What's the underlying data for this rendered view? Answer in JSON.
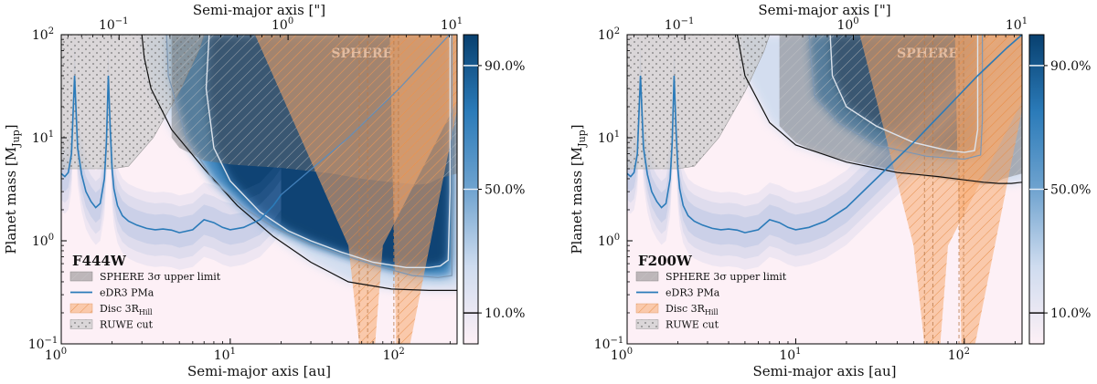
{
  "chart_data": [
    {
      "type": "area",
      "panel_label": "F444W",
      "xlabel": "Semi-major axis [au]",
      "ylabel": "Planet mass [M_Jup]",
      "ylabel_main": "Planet mass [M",
      "ylabel_sub": "Jup",
      "ylabel_close": "]",
      "top_xlabel": "Semi-major axis [\"]",
      "xscale": "log",
      "yscale": "log",
      "xlim": [
        1,
        220
      ],
      "ylim": [
        0.1,
        100
      ],
      "top_xlim": [
        0.0455,
        10
      ],
      "x_ticks": [
        {
          "v": 1,
          "b": "10",
          "e": "0"
        },
        {
          "v": 10,
          "b": "10",
          "e": "1"
        },
        {
          "v": 100,
          "b": "10",
          "e": "2"
        }
      ],
      "y_ticks": [
        {
          "v": 0.1,
          "b": "10",
          "e": "−1"
        },
        {
          "v": 1,
          "b": "10",
          "e": "0"
        },
        {
          "v": 10,
          "b": "10",
          "e": "1"
        },
        {
          "v": 100,
          "b": "10",
          "e": "2"
        }
      ],
      "top_ticks": [
        {
          "v": 0.1,
          "b": "10",
          "e": "−1"
        },
        {
          "v": 1,
          "b": "10",
          "e": "0"
        },
        {
          "v": 10,
          "b": "10",
          "e": "1"
        }
      ],
      "sphere_label": "SPHERE",
      "colorbar": {
        "ticks": [
          "90.0%",
          "50.0%",
          "10.0%"
        ],
        "values": [
          0.9,
          0.5,
          0.1
        ],
        "colors": [
          "#fdf0f6",
          "#cfdcef",
          "#6fa3cf",
          "#2b7bb9",
          "#08406f"
        ]
      },
      "legend": [
        {
          "label": "SPHERE 3σ upper limit",
          "style": "sphere"
        },
        {
          "label": "eDR3 PMa",
          "style": "pma"
        },
        {
          "label_main": "Disc 3R",
          "label_sub": "Hill",
          "style": "disc"
        },
        {
          "label": "RUWE cut",
          "style": "ruwe"
        }
      ],
      "pma_curve": {
        "x": [
          1,
          1.05,
          1.1,
          1.15,
          1.2,
          1.25,
          1.32,
          1.4,
          1.5,
          1.6,
          1.7,
          1.8,
          1.85,
          1.9,
          1.95,
          2.0,
          2.05,
          2.15,
          2.3,
          2.5,
          2.8,
          3.2,
          3.6,
          4.0,
          4.5,
          5.0,
          6.0,
          7.0,
          8.0,
          9.0,
          10,
          12,
          15,
          18,
          20
        ],
        "y": [
          4.5,
          4.2,
          4.6,
          7.0,
          40,
          8.0,
          4.4,
          3.0,
          2.4,
          2.1,
          2.3,
          4.0,
          9.0,
          40,
          12,
          5.0,
          3.2,
          2.2,
          1.75,
          1.55,
          1.42,
          1.32,
          1.28,
          1.3,
          1.27,
          1.2,
          1.28,
          1.6,
          1.5,
          1.35,
          1.28,
          1.35,
          1.6,
          2.2,
          2.8
        ]
      },
      "pma_line_extension": {
        "x": [
          20,
          50,
          100,
          220
        ],
        "y": [
          2.8,
          10,
          30,
          120
        ]
      },
      "contours": {
        "90": {
          "x": [
            7.5,
            7.2,
            8.0,
            10,
            15,
            22,
            30,
            45,
            70,
            110,
            150,
            175,
            195,
            200,
            200
          ],
          "y": [
            100,
            30,
            8,
            3.8,
            1.9,
            1.25,
            1.0,
            0.78,
            0.62,
            0.55,
            0.55,
            0.57,
            0.65,
            3,
            100
          ]
        },
        "50": {
          "x": [
            4.2,
            4.3,
            5.5,
            8,
            12,
            18,
            30,
            50,
            80,
            120,
            170,
            205,
            205
          ],
          "y": [
            100,
            40,
            10,
            3.8,
            2.1,
            1.35,
            0.92,
            0.7,
            0.55,
            0.46,
            0.44,
            0.46,
            100
          ]
        },
        "10": {
          "x": [
            3.0,
            3.1,
            3.4,
            4.5,
            7,
            11,
            18,
            30,
            50,
            90,
            150,
            220
          ],
          "y": [
            100,
            60,
            30,
            12,
            5.0,
            2.2,
            1.1,
            0.62,
            0.4,
            0.34,
            0.33,
            0.33
          ]
        }
      },
      "sphere_limit": {
        "x": [
          4.5,
          5,
          7,
          10,
          20,
          40,
          60,
          90,
          110,
          130,
          150,
          170,
          220
        ],
        "y": [
          10,
          8,
          6,
          5.5,
          5.1,
          4.5,
          4.0,
          3.7,
          3.6,
          3.5,
          3.6,
          4.0,
          4.5
        ]
      },
      "disc_regions": [
        {
          "x_low": [
            14,
            50,
            58
          ],
          "x_high": [
            350,
            80,
            72
          ],
          "y": [
            100,
            0.9,
            0.1
          ]
        },
        {
          "x_low": [
            88,
            96
          ],
          "x_high": [
            270,
            116
          ],
          "y": [
            100,
            0.1
          ]
        }
      ],
      "disc_lines": [
        58,
        65,
        93,
        99
      ]
    },
    {
      "type": "area",
      "panel_label": "F200W",
      "xlabel": "Semi-major axis [au]",
      "ylabel": "Planet mass [M_Jup]",
      "ylabel_main": "Planet mass [M",
      "ylabel_sub": "Jup",
      "ylabel_close": "]",
      "top_xlabel": "Semi-major axis [\"]",
      "xscale": "log",
      "yscale": "log",
      "xlim": [
        1,
        220
      ],
      "ylim": [
        0.1,
        100
      ],
      "top_xlim": [
        0.0455,
        10
      ],
      "x_ticks": [
        {
          "v": 1,
          "b": "10",
          "e": "0"
        },
        {
          "v": 10,
          "b": "10",
          "e": "1"
        },
        {
          "v": 100,
          "b": "10",
          "e": "2"
        }
      ],
      "y_ticks": [
        {
          "v": 0.1,
          "b": "10",
          "e": "−1"
        },
        {
          "v": 1,
          "b": "10",
          "e": "0"
        },
        {
          "v": 10,
          "b": "10",
          "e": "1"
        },
        {
          "v": 100,
          "b": "10",
          "e": "2"
        }
      ],
      "top_ticks": [
        {
          "v": 0.1,
          "b": "10",
          "e": "−1"
        },
        {
          "v": 1,
          "b": "10",
          "e": "0"
        },
        {
          "v": 10,
          "b": "10",
          "e": "1"
        }
      ],
      "sphere_label": "SPHERE",
      "colorbar": {
        "ticks": [
          "90.0%",
          "50.0%",
          "10.0%"
        ],
        "values": [
          0.9,
          0.5,
          0.1
        ],
        "colors": [
          "#fdf0f6",
          "#cfdcef",
          "#6fa3cf",
          "#2b7bb9",
          "#08406f"
        ]
      },
      "legend": [
        {
          "label": "SPHERE 3σ upper limit",
          "style": "sphere"
        },
        {
          "label": "eDR3 PMa",
          "style": "pma"
        },
        {
          "label_main": "Disc 3R",
          "label_sub": "Hill",
          "style": "disc"
        },
        {
          "label": "RUWE cut",
          "style": "ruwe"
        }
      ],
      "pma_curve": {
        "x": [
          1,
          1.05,
          1.1,
          1.15,
          1.2,
          1.25,
          1.32,
          1.4,
          1.5,
          1.6,
          1.7,
          1.8,
          1.85,
          1.9,
          1.95,
          2.0,
          2.05,
          2.15,
          2.3,
          2.5,
          2.8,
          3.2,
          3.6,
          4.0,
          4.5,
          5.0,
          6.0,
          7.0,
          8.0,
          9.0,
          10,
          12,
          15,
          20,
          30,
          50,
          80,
          120,
          180,
          220
        ],
        "y": [
          4.5,
          4.2,
          4.6,
          7.0,
          40,
          8.0,
          4.4,
          3.0,
          2.4,
          2.1,
          2.3,
          4.0,
          9.0,
          40,
          12,
          5.0,
          3.2,
          2.2,
          1.75,
          1.55,
          1.42,
          1.32,
          1.28,
          1.3,
          1.27,
          1.2,
          1.28,
          1.6,
          1.5,
          1.35,
          1.28,
          1.35,
          1.55,
          2.1,
          4.0,
          9,
          20,
          40,
          75,
          100
        ]
      },
      "pma_line_extension": {
        "x": [],
        "y": []
      },
      "contours": {
        "90": {
          "x": [
            16,
            16.5,
            20,
            30,
            50,
            80,
            100,
            115,
            120,
            120
          ],
          "y": [
            100,
            40,
            20,
            13,
            9,
            7.5,
            7.2,
            7.5,
            12,
            100
          ]
        },
        "50": {
          "x": [
            12,
            12.3,
            13,
            18,
            30,
            60,
            100,
            125,
            128,
            128
          ],
          "y": [
            100,
            60,
            25,
            14,
            8.5,
            6.6,
            6.2,
            6.8,
            15,
            100
          ]
        },
        "10": {
          "x": [
            4.5,
            5,
            7,
            10,
            20,
            40,
            70,
            100,
            130,
            160,
            190,
            220
          ],
          "y": [
            100,
            40,
            14,
            8.5,
            5.8,
            4.6,
            4.2,
            3.9,
            3.7,
            3.6,
            3.6,
            3.7
          ]
        }
      },
      "sphere_limit": {
        "x": [
          8,
          8,
          10,
          14,
          20,
          40,
          60,
          90,
          110,
          130,
          150,
          170,
          220
        ],
        "y": [
          100,
          13,
          9,
          7,
          6,
          4.8,
          4.2,
          3.8,
          3.6,
          3.5,
          3.6,
          4.0,
          4.5
        ]
      },
      "disc_regions": [
        {
          "x_low": [
            24,
            50,
            58
          ],
          "x_high": [
            350,
            80,
            72
          ],
          "y": [
            100,
            0.9,
            0.1
          ]
        },
        {
          "x_low": [
            88,
            96
          ],
          "x_high": [
            270,
            116
          ],
          "y": [
            100,
            0.1
          ]
        }
      ],
      "disc_lines": [
        58,
        65,
        93,
        99
      ]
    }
  ]
}
